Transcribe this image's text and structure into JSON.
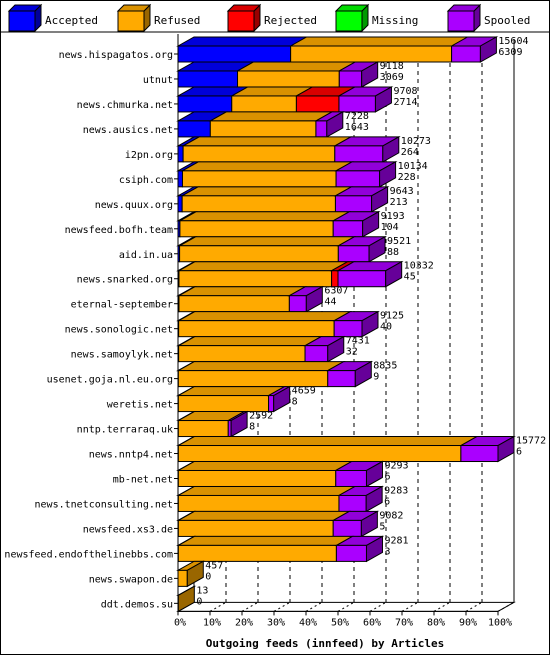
{
  "chart_data": {
    "type": "bar",
    "title": "",
    "xlabel": "Outgoing feeds (innfeed) by Articles",
    "ylabel": "",
    "xlim": [
      0,
      100
    ],
    "x_tick_labels": [
      "0%",
      "10%",
      "20%",
      "30%",
      "40%",
      "50%",
      "60%",
      "70%",
      "80%",
      "90%",
      "100%"
    ],
    "legend_position": "top",
    "series": [
      {
        "name": "Accepted",
        "color": "#0000ff"
      },
      {
        "name": "Refused",
        "color": "#ffaa00"
      },
      {
        "name": "Rejected",
        "color": "#ff0000"
      },
      {
        "name": "Missing",
        "color": "#00ff00"
      },
      {
        "name": "Spooled",
        "color": "#aa00ff"
      }
    ],
    "rows": [
      {
        "name": "news.hispagatos.org",
        "total": "15604",
        "accepted": "6309",
        "segments": [
          35.2,
          50.3,
          0,
          0,
          9.0
        ]
      },
      {
        "name": "utnut",
        "total": "9118",
        "accepted": "3069",
        "segments": [
          18.6,
          31.8,
          0,
          0,
          7.0
        ]
      },
      {
        "name": "news.chmurka.net",
        "total": "9708",
        "accepted": "2714",
        "segments": [
          16.8,
          20.2,
          13.3,
          0,
          11.4
        ]
      },
      {
        "name": "news.ausics.net",
        "total": "7228",
        "accepted": "1643",
        "segments": [
          10.1,
          33.0,
          0,
          0,
          3.4
        ]
      },
      {
        "name": "i2pn.org",
        "total": "10273",
        "accepted": "264",
        "segments": [
          1.6,
          47.4,
          0,
          0,
          15.0
        ]
      },
      {
        "name": "csiph.com",
        "total": "10134",
        "accepted": "228",
        "segments": [
          1.4,
          48.0,
          0,
          0,
          13.6
        ]
      },
      {
        "name": "news.quux.org",
        "total": "9643",
        "accepted": "213",
        "segments": [
          1.3,
          47.9,
          0,
          0,
          11.3
        ]
      },
      {
        "name": "newsfeed.bofh.team",
        "total": "9193",
        "accepted": "104",
        "segments": [
          0.6,
          47.9,
          0,
          0,
          9.2
        ]
      },
      {
        "name": "aid.in.ua",
        "total": "9521",
        "accepted": "88",
        "segments": [
          0.5,
          49.6,
          0,
          0,
          9.6
        ]
      },
      {
        "name": "news.snarked.org",
        "total": "10332",
        "accepted": "45",
        "segments": [
          0.3,
          47.7,
          2.0,
          0,
          14.9
        ]
      },
      {
        "name": "eternal-september",
        "total": "6307",
        "accepted": "44",
        "segments": [
          0.3,
          34.5,
          0,
          0,
          5.3
        ]
      },
      {
        "name": "news.sonologic.net",
        "total": "9125",
        "accepted": "40",
        "segments": [
          0.2,
          48.6,
          0,
          0,
          8.7
        ]
      },
      {
        "name": "news.samoylyk.net",
        "total": "7431",
        "accepted": "32",
        "segments": [
          0.2,
          39.5,
          0,
          0,
          7.1
        ]
      },
      {
        "name": "usenet.goja.nl.eu.org",
        "total": "8835",
        "accepted": "9",
        "segments": [
          0.1,
          46.7,
          0,
          0,
          8.6
        ]
      },
      {
        "name": "weretis.net",
        "total": "4659",
        "accepted": "8",
        "segments": [
          0.1,
          28.2,
          0,
          0,
          1.6
        ]
      },
      {
        "name": "nntp.terraraq.uk",
        "total": "2592",
        "accepted": "8",
        "segments": [
          0.1,
          15.6,
          0,
          0,
          0.9
        ]
      },
      {
        "name": "news.nntp4.net",
        "total": "15772",
        "accepted": "6",
        "segments": [
          0.1,
          88.3,
          0,
          0,
          11.6
        ]
      },
      {
        "name": "mb-net.net",
        "total": "9293",
        "accepted": "6",
        "segments": [
          0.1,
          49.2,
          0,
          0,
          9.6
        ]
      },
      {
        "name": "news.tnetconsulting.net",
        "total": "9283",
        "accepted": "6",
        "segments": [
          0.1,
          50.2,
          0,
          0,
          8.5
        ]
      },
      {
        "name": "newsfeed.xs3.de",
        "total": "9082",
        "accepted": "5",
        "segments": [
          0.1,
          48.4,
          0,
          0,
          8.8
        ]
      },
      {
        "name": "newsfeed.endofthelinebbs.com",
        "total": "9281",
        "accepted": "3",
        "segments": [
          0.1,
          49.4,
          0,
          0,
          9.4
        ]
      },
      {
        "name": "news.swapon.de",
        "total": "457",
        "accepted": "0",
        "segments": [
          0,
          2.9,
          0,
          0,
          0
        ]
      },
      {
        "name": "ddt.demos.su",
        "total": "13",
        "accepted": "0",
        "segments": [
          0,
          0.1,
          0,
          0,
          0
        ]
      }
    ]
  }
}
